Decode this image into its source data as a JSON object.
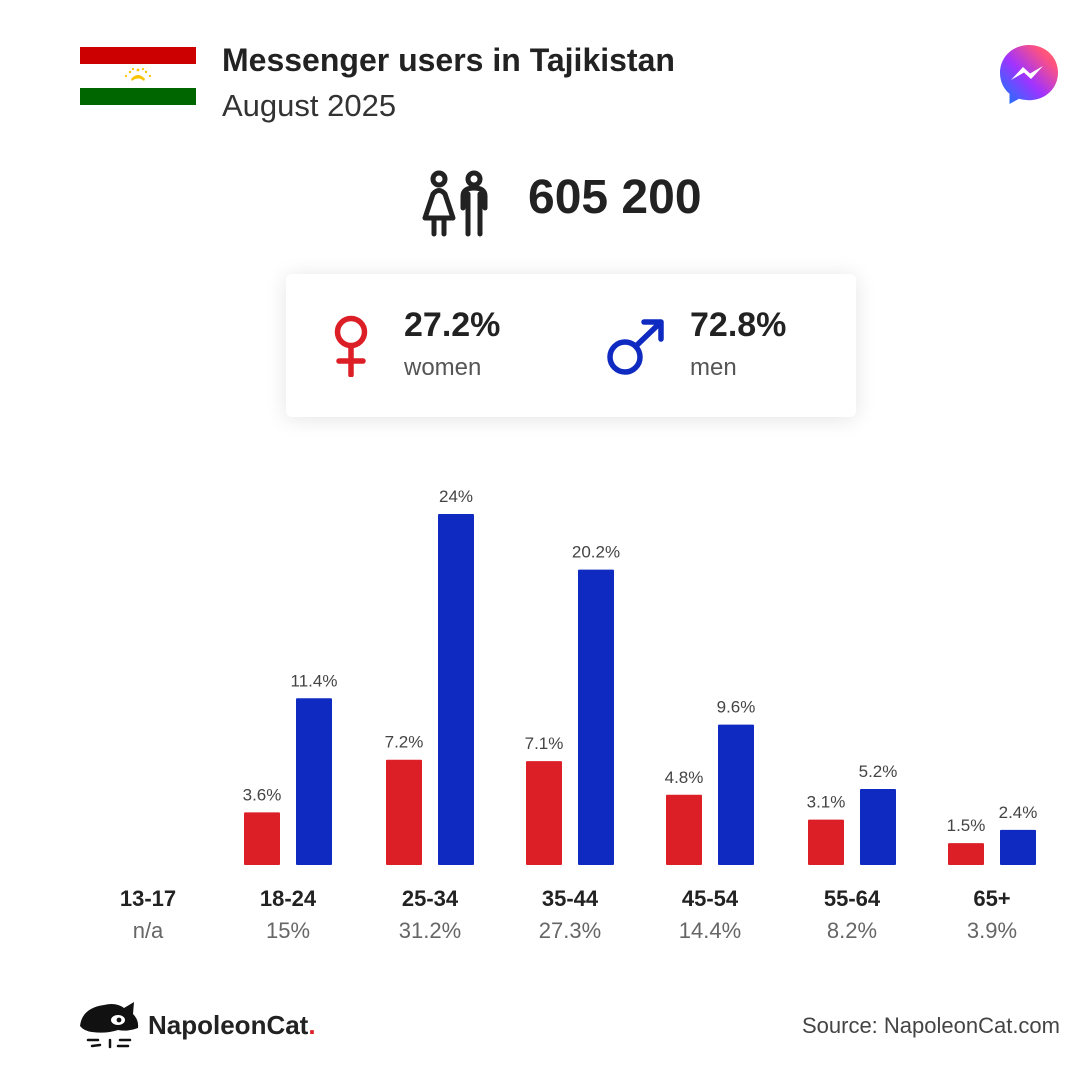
{
  "header": {
    "title": "Messenger users in Tajikistan",
    "subtitle": "August 2025"
  },
  "summary": {
    "total_users": "605 200",
    "women_pct": "27.2%",
    "women_label": "women",
    "men_pct": "72.8%",
    "men_label": "men"
  },
  "icons": {
    "flag": "tajikistan-flag-icon",
    "app_logo": "messenger-logo-icon",
    "people": "people-icon",
    "female": "female-symbol-icon",
    "male": "male-symbol-icon",
    "brand_logo": "napoleoncat-logo-icon"
  },
  "colors": {
    "women": "#dc1f27",
    "men": "#0f2ac1",
    "text": "#222222",
    "flag_red": "#cc0000",
    "flag_green": "#006600",
    "flag_gold": "#f8c300"
  },
  "chart_data": {
    "type": "bar",
    "categories": [
      "13-17",
      "18-24",
      "25-34",
      "35-44",
      "45-54",
      "55-64",
      "65+"
    ],
    "category_totals": [
      "n/a",
      "15%",
      "31.2%",
      "27.3%",
      "14.4%",
      "8.2%",
      "3.9%"
    ],
    "series": [
      {
        "name": "women",
        "values": [
          null,
          3.6,
          7.2,
          7.1,
          4.8,
          3.1,
          1.5
        ],
        "labels": [
          "",
          "3.6%",
          "7.2%",
          "7.1%",
          "4.8%",
          "3.1%",
          "1.5%"
        ]
      },
      {
        "name": "men",
        "values": [
          null,
          11.4,
          24,
          20.2,
          9.6,
          5.2,
          2.4
        ],
        "labels": [
          "",
          "11.4%",
          "24%",
          "20.2%",
          "9.6%",
          "5.2%",
          "2.4%"
        ]
      }
    ],
    "ylim": [
      0,
      24
    ],
    "grid": false
  },
  "footer": {
    "brand": "NapoleonCat",
    "brand_dot": ".",
    "source": "Source: NapoleonCat.com"
  }
}
